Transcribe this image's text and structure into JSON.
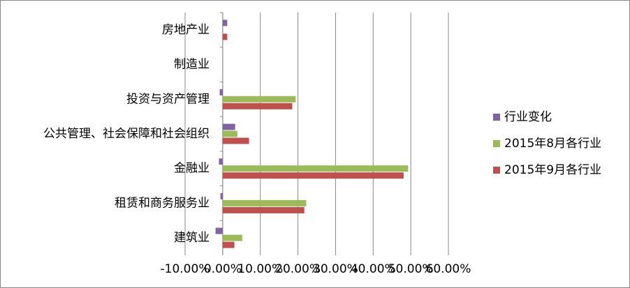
{
  "chart_data": {
    "type": "hbar",
    "categories": [
      "房地产业",
      "制造业",
      "投资与资产管理",
      "公共管理、社会保障和社会组织",
      "金融业",
      "租赁和商务服务业",
      "建筑业"
    ],
    "series": [
      {
        "name": "行业变化",
        "color": "#8064a2",
        "values": [
          1.2,
          0,
          -0.8,
          3.3,
          -1.0,
          -0.6,
          -1.9
        ]
      },
      {
        "name": "2015年8月各行业",
        "color": "#9bbb59",
        "values": [
          0,
          0,
          19.4,
          3.9,
          49.3,
          22.2,
          5.2
        ]
      },
      {
        "name": "2015年9月各行业",
        "color": "#c0504d",
        "values": [
          1.2,
          0,
          18.5,
          7.0,
          48.1,
          21.7,
          3.1
        ]
      }
    ],
    "xlim": [
      -10,
      60
    ],
    "xticks": [
      {
        "value": -10,
        "label": "-10.00%"
      },
      {
        "value": 0,
        "label": "0.00%"
      },
      {
        "value": 10,
        "label": "10.00%"
      },
      {
        "value": 20,
        "label": "20.00%"
      },
      {
        "value": 30,
        "label": "30.00%"
      },
      {
        "value": 40,
        "label": "40.00%"
      },
      {
        "value": 50,
        "label": "50.00%"
      },
      {
        "value": 60,
        "label": "60.00%"
      }
    ],
    "grid": true
  }
}
